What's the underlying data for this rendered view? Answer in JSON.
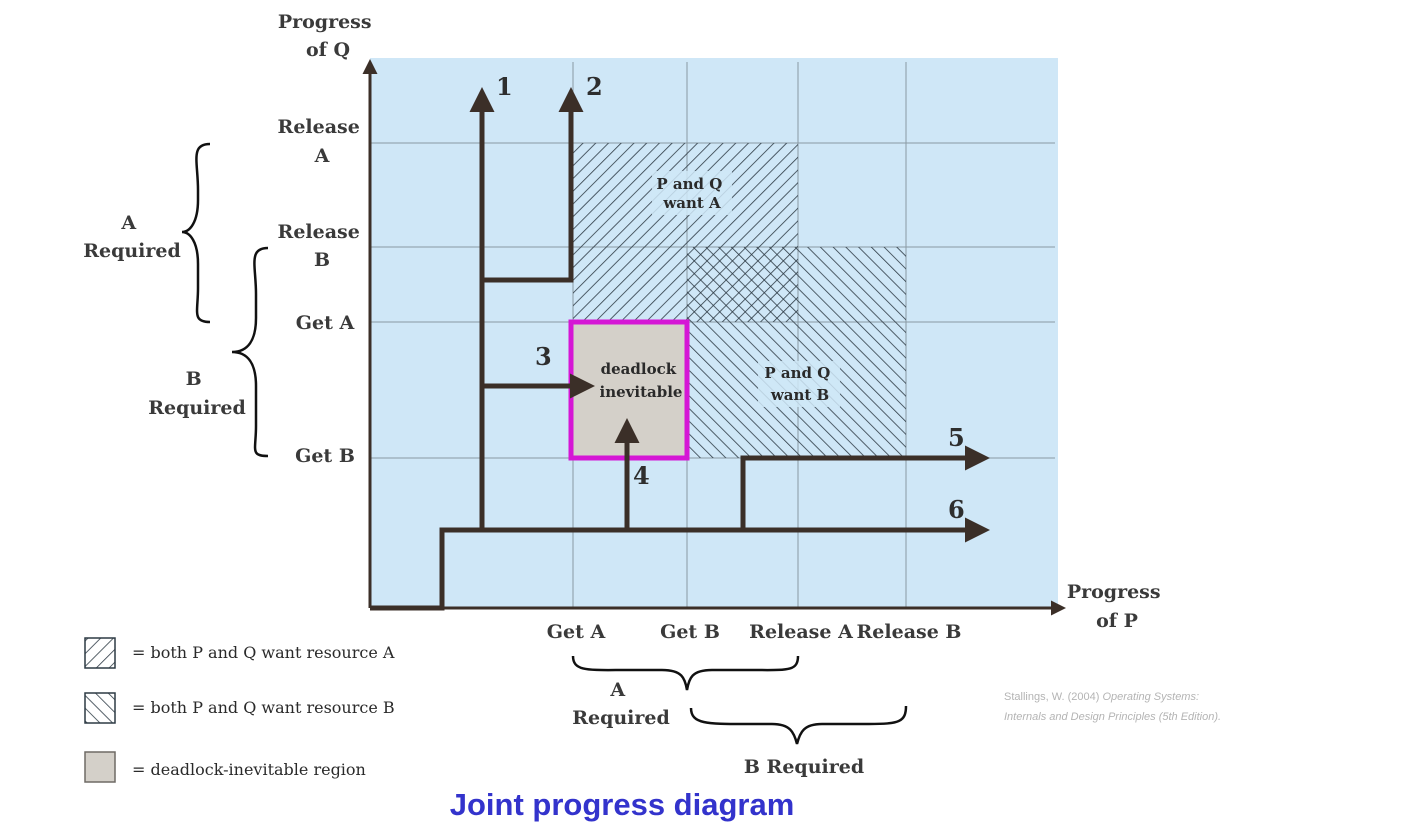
{
  "axes": {
    "y_label": [
      "Progress",
      "of Q"
    ],
    "x_label": [
      "Progress",
      "of P"
    ]
  },
  "y_ticks": [
    {
      "id": "release-a",
      "lines": [
        "Release",
        "A"
      ]
    },
    {
      "id": "release-b",
      "lines": [
        "Release",
        "B"
      ]
    },
    {
      "id": "get-a",
      "lines": [
        "Get A"
      ]
    },
    {
      "id": "get-b",
      "lines": [
        "Get B"
      ]
    }
  ],
  "x_ticks": [
    "Get A",
    "Get B",
    "Release A",
    "Release B"
  ],
  "brackets": {
    "left_a": [
      "A",
      "Required"
    ],
    "left_b": [
      "B",
      "Required"
    ],
    "bottom_a": [
      "A",
      "Required"
    ],
    "bottom_b": "B Required"
  },
  "regions": {
    "want_a": [
      "P and Q",
      "want A"
    ],
    "want_b": [
      "P and Q",
      "want B"
    ],
    "deadlock": [
      "deadlock",
      "inevitable"
    ]
  },
  "paths": [
    "1",
    "2",
    "3",
    "4",
    "5",
    "6"
  ],
  "legend": [
    {
      "id": "hatch-a",
      "text": "= both P and Q want resource A"
    },
    {
      "id": "hatch-b",
      "text": "= both P and Q want resource B"
    },
    {
      "id": "deadlock",
      "text": "= deadlock-inevitable region"
    }
  ],
  "citation": {
    "line1_plain": "Stallings, W. (2004) ",
    "line1_italic": "Operating Systems:",
    "line2_italic": "Internals and Design Principles (5th Edition)."
  },
  "title": "Joint progress diagram",
  "colors": {
    "background": "#cfe7f7",
    "grid": "#8a9aa3",
    "path": "#3b2f28",
    "deadlock_fill": "#d4d0c9",
    "deadlock_border": "#d516d5",
    "title": "#3333cc"
  }
}
